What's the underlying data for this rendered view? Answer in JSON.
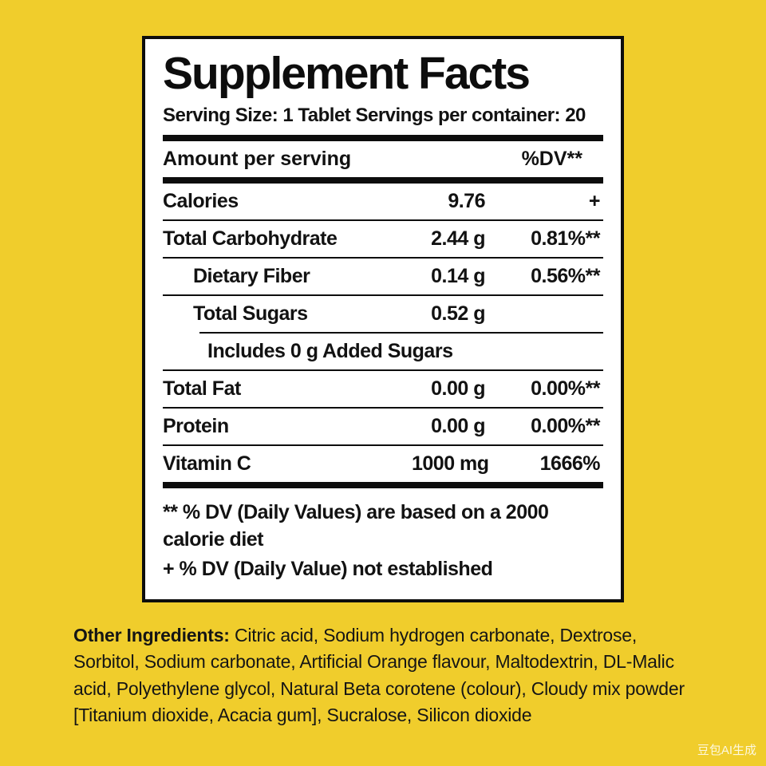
{
  "colors": {
    "background": "#F0CD2C",
    "panel": "#FFFFFF",
    "text": "#121212",
    "rule": "#0d0d0d"
  },
  "label": {
    "title": "Supplement Facts",
    "serving_line": "Serving Size: 1 Tablet Servings per container: 20",
    "header": {
      "left": "Amount per serving",
      "right": "%DV**"
    },
    "rows": [
      {
        "name": "Calories",
        "amount": "9.76",
        "dv": "+",
        "indent": 0
      },
      {
        "name": "Total Carbohydrate",
        "amount": "2.44 g",
        "dv": "0.81%**",
        "indent": 0
      },
      {
        "name": "Dietary Fiber",
        "amount": "0.14 g",
        "dv": "0.56%**",
        "indent": 1
      },
      {
        "name": "Total Sugars",
        "amount": "0.52 g",
        "dv": "",
        "indent": 1
      },
      {
        "name": "Includes 0 g Added Sugars",
        "amount": "",
        "dv": "",
        "indent": 2
      },
      {
        "name": "Total Fat",
        "amount": "0.00 g",
        "dv": "0.00%**",
        "indent": 0
      },
      {
        "name": "Protein",
        "amount": "0.00 g",
        "dv": "0.00%**",
        "indent": 0
      },
      {
        "name": "Vitamin C",
        "amount": "1000 mg",
        "dv": "1666%",
        "indent": 0
      }
    ],
    "footnotes": [
      "** % DV (Daily Values) are based on a 2000 calorie diet",
      "+ % DV (Daily Value) not established"
    ]
  },
  "other_ingredients": {
    "label": "Other Ingredients:",
    "text": " Citric acid, Sodium hydrogen carbonate, Dextrose, Sorbitol, Sodium carbonate, Artificial Orange flavour, Maltodextrin, DL-Malic acid, Polyethylene glycol, Natural Beta corotene (colour), Cloudy mix powder [Titanium dioxide, Acacia gum], Sucralose, Silicon dioxide"
  },
  "watermark": "豆包AI生成"
}
